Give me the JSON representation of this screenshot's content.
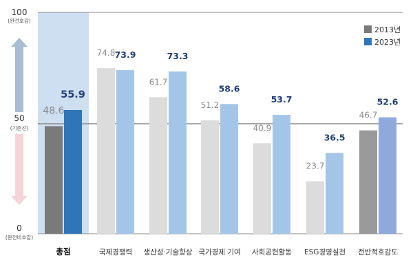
{
  "chart_data": {
    "type": "bar",
    "title": "",
    "categories": [
      "총점",
      "국제경쟁력",
      "생산성·기술향상",
      "국가경제 기여",
      "사회공헌활동",
      "ESG경영실천",
      "전반적호감도"
    ],
    "series": [
      {
        "name": "2013년",
        "values": [
          48.6,
          74.8,
          61.7,
          51.2,
          40.9,
          23.7,
          46.7
        ]
      },
      {
        "name": "2023년",
        "values": [
          55.9,
          73.9,
          73.3,
          58.6,
          53.7,
          36.5,
          52.6
        ]
      }
    ],
    "value_labels_2013": [
      "48.6",
      "74.8",
      "61.7",
      "51.2",
      "40.9",
      "23.7",
      "46.7"
    ],
    "value_labels_2023": [
      "55.9",
      "73.9",
      "73.3",
      "58.6",
      "53.7",
      "36.5",
      "52.6"
    ],
    "ylim": [
      0,
      100
    ],
    "y_ticks": [
      {
        "value": "100",
        "note": "(완전호감)"
      },
      {
        "value": "50",
        "note": "(기준선)"
      },
      {
        "value": "0",
        "note": "(완전비호감)"
      }
    ],
    "reference_line": 50,
    "legend": {
      "placement": "top-right",
      "items": [
        "2013년",
        "2023년"
      ]
    },
    "colors": {
      "main_2013": "#7a7a7a",
      "main_2023": "#2f75b8",
      "other_2013": "#dcdcdc",
      "other_2023": "#a3c6e8",
      "last_2023": "#8fa9dc",
      "highlight_bg": "#cfdff2",
      "arrow_up": "#a9bcd3",
      "arrow_down": "#f6d3d6"
    }
  }
}
